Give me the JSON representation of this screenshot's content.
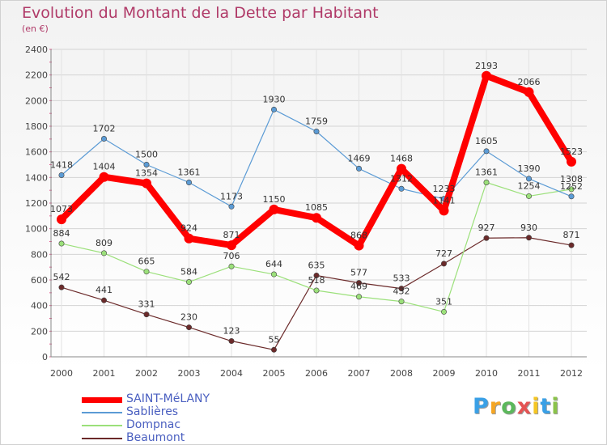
{
  "chart_data": {
    "type": "line",
    "title": "Evolution du Montant de la Dette par Habitant",
    "subtitle": "(en €)",
    "x": [
      "2000",
      "2001",
      "2002",
      "2003",
      "2004",
      "2005",
      "2006",
      "2007",
      "2008",
      "2009",
      "2010",
      "2011",
      "2012"
    ],
    "ylim": [
      0,
      2400
    ],
    "yticks": [
      0,
      200,
      400,
      600,
      800,
      1000,
      1200,
      1400,
      1600,
      1800,
      2000,
      2200,
      2400
    ],
    "grid": true,
    "legend_position": "bottom-left",
    "series": [
      {
        "name": "SAINT-MéLANY",
        "color": "#ff0000",
        "values": [
          1073,
          1404,
          1354,
          924,
          871,
          1150,
          1085,
          868,
          1468,
          1141,
          2193,
          2066,
          1523
        ]
      },
      {
        "name": "Sablières",
        "color": "#5b9bd5",
        "values": [
          1418,
          1702,
          1500,
          1361,
          1173,
          1930,
          1759,
          1469,
          1312,
          1233,
          1605,
          1390,
          1252
        ]
      },
      {
        "name": "Dompnac",
        "color": "#9be07a",
        "values": [
          884,
          809,
          665,
          584,
          706,
          644,
          518,
          469,
          432,
          351,
          1361,
          1254,
          1308
        ]
      },
      {
        "name": "Beaumont",
        "color": "#6b2a2a",
        "values": [
          542,
          441,
          331,
          230,
          123,
          55,
          635,
          577,
          533,
          727,
          927,
          930,
          871
        ]
      }
    ]
  },
  "logo": {
    "letters": [
      "P",
      "r",
      "o",
      "x",
      "i",
      "t",
      "i"
    ],
    "colors": [
      "#3aa0e6",
      "#f5a623",
      "#5cb85c",
      "#e55353",
      "#f5c623",
      "#3aa0e6",
      "#8bc34a"
    ]
  }
}
